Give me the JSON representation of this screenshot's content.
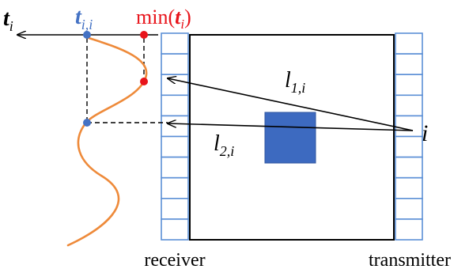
{
  "labels": {
    "t_axis": {
      "base": "t",
      "sub": "i"
    },
    "t_ii": {
      "base": "t",
      "sub": "i,i"
    },
    "min_t": {
      "prefix": "min(",
      "base": "t",
      "sub": "i",
      "suffix": ")"
    },
    "l1": {
      "base": "l",
      "sub": "1,i"
    },
    "l2": {
      "base": "l",
      "sub": "2,i"
    },
    "source": "i",
    "receiver": "receiver",
    "transmitter": "transmitter"
  },
  "colors": {
    "line": "#000000",
    "array_border": "#5b8fd6",
    "object_fill": "#3d6ac0",
    "object_stroke": "#2f55a0",
    "curve": "#ee8a3a",
    "blue_dot": "#4472c4",
    "red_dot": "#e8141b",
    "blue_label": "#4472c4",
    "red_label": "#e8141b",
    "text": "#000000"
  },
  "receiver_array": {
    "element_count": 10
  },
  "transmitter_array": {
    "element_count": 10
  }
}
